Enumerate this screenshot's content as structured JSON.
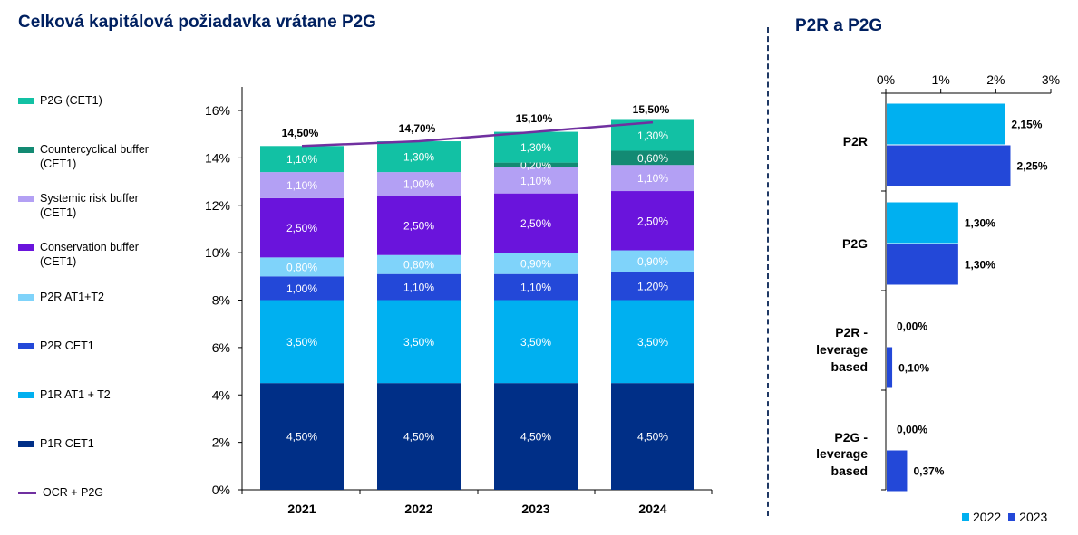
{
  "main_chart": {
    "title": "Celková kapitálová požiadavka vrátane P2G",
    "chart_data": {
      "type": "bar",
      "stacked": true,
      "categories": [
        "2021",
        "2022",
        "2023",
        "2024"
      ],
      "ylim": [
        0,
        16
      ],
      "yticks": [
        0,
        2,
        4,
        6,
        8,
        10,
        12,
        14,
        16
      ],
      "ytick_labels": [
        "0%",
        "2%",
        "4%",
        "6%",
        "8%",
        "10%",
        "12%",
        "14%",
        "16%"
      ],
      "series": [
        {
          "name": "P1R CET1",
          "color": "#002F87",
          "values": [
            4.5,
            4.5,
            4.5,
            4.5
          ],
          "labels": [
            "4,50%",
            "4,50%",
            "4,50%",
            "4,50%"
          ]
        },
        {
          "name": "P1R AT1 + T2",
          "color": "#00B0F0",
          "values": [
            3.5,
            3.5,
            3.5,
            3.5
          ],
          "labels": [
            "3,50%",
            "3,50%",
            "3,50%",
            "3,50%"
          ]
        },
        {
          "name": "P2R CET1",
          "color": "#2348D8",
          "values": [
            1.0,
            1.1,
            1.1,
            1.2
          ],
          "labels": [
            "1,00%",
            "1,10%",
            "1,10%",
            "1,20%"
          ]
        },
        {
          "name": "P2R AT1+T2",
          "color": "#7FD3FA",
          "values": [
            0.8,
            0.8,
            0.9,
            0.9
          ],
          "labels": [
            "0,80%",
            "0,80%",
            "0,90%",
            "0,90%"
          ]
        },
        {
          "name": "Conservation buffer (CET1)",
          "color": "#6A14DC",
          "values": [
            2.5,
            2.5,
            2.5,
            2.5
          ],
          "labels": [
            "2,50%",
            "2,50%",
            "2,50%",
            "2,50%"
          ]
        },
        {
          "name": "Systemic risk buffer (CET1)",
          "color": "#B3A0F4",
          "values": [
            1.1,
            1.0,
            1.1,
            1.1
          ],
          "labels": [
            "1,10%",
            "1,00%",
            "1,10%",
            "1,10%"
          ]
        },
        {
          "name": "Countercyclical buffer (CET1)",
          "color": "#138A73",
          "values": [
            0,
            0,
            0.2,
            0.6
          ],
          "labels": [
            "",
            "",
            "0,20%",
            "0,60%"
          ]
        },
        {
          "name": "P2G (CET1)",
          "color": "#12C1A4",
          "values": [
            1.1,
            1.3,
            1.3,
            1.3
          ],
          "labels": [
            "1,10%",
            "1,30%",
            "1,30%",
            "1,30%"
          ]
        }
      ],
      "line": {
        "name": "OCR + P2G",
        "color": "#7030A0",
        "values": [
          14.5,
          14.7,
          15.1,
          15.5
        ],
        "labels": [
          "14,50%",
          "14,70%",
          "15,10%",
          "15,50%"
        ]
      },
      "legend": [
        {
          "label": "P2G (CET1)",
          "color": "#12C1A4",
          "kind": "box"
        },
        {
          "label": "Countercyclical buffer (CET1)",
          "color": "#138A73",
          "kind": "box"
        },
        {
          "label": "Systemic  risk buffer (CET1)",
          "color": "#B3A0F4",
          "kind": "box"
        },
        {
          "label": "Conservation buffer (CET1)",
          "color": "#6A14DC",
          "kind": "box"
        },
        {
          "label": "P2R AT1+T2",
          "color": "#7FD3FA",
          "kind": "box"
        },
        {
          "label": "P2R CET1",
          "color": "#2348D8",
          "kind": "box"
        },
        {
          "label": "P1R AT1 + T2",
          "color": "#00B0F0",
          "kind": "box"
        },
        {
          "label": "P1R CET1",
          "color": "#002F87",
          "kind": "box"
        },
        {
          "label": "OCR + P2G",
          "color": "#7030A0",
          "kind": "line"
        }
      ]
    }
  },
  "side_chart": {
    "title": "P2R a P2G",
    "chart_data": {
      "type": "bar",
      "orientation": "horizontal",
      "categories": [
        "P2R",
        "P2G",
        "P2R - leverage based",
        "P2G - leverage based"
      ],
      "category_lines": [
        [
          "P2R"
        ],
        [
          "P2G"
        ],
        [
          "P2R -",
          "leverage",
          "based"
        ],
        [
          "P2G -",
          "leverage",
          "based"
        ]
      ],
      "xlim": [
        0,
        3
      ],
      "xticks": [
        0,
        1,
        2,
        3
      ],
      "xtick_labels": [
        "0%",
        "1%",
        "2%",
        "3%"
      ],
      "series": [
        {
          "name": "2022",
          "color": "#00B0F0",
          "values": [
            2.15,
            1.3,
            0.0,
            0.0
          ],
          "labels": [
            "2,15%",
            "1,30%",
            "0,00%",
            "0,00%"
          ]
        },
        {
          "name": "2023",
          "color": "#2348D8",
          "values": [
            2.25,
            1.3,
            0.1,
            0.37
          ],
          "labels": [
            "2,25%",
            "1,30%",
            "0,10%",
            "0,37%"
          ]
        }
      ],
      "legend": [
        {
          "label": "2022",
          "color": "#00B0F0"
        },
        {
          "label": "2023",
          "color": "#2348D8"
        }
      ]
    }
  }
}
